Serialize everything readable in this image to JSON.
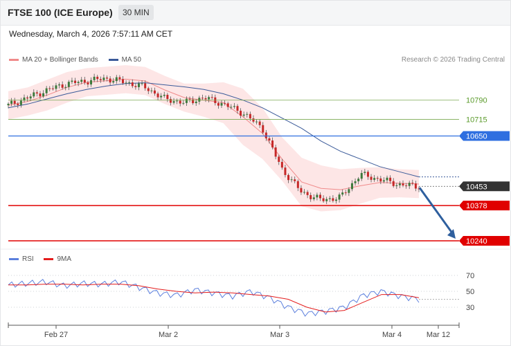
{
  "header": {
    "title": "FTSE 100 (ICE Europe)",
    "timeframe": "30 MIN"
  },
  "datetime": "Wednesday, March 4, 2026 7:57:11 AM CET",
  "legend_top": {
    "item1": "MA 20 + Bollinger Bands",
    "item2": "MA 50"
  },
  "credit": "Research © 2026 Trading Central",
  "legend_rsi": {
    "item1": "RSI",
    "item2": "9MA"
  },
  "colors": {
    "ma20": "#f08a8a",
    "ma50": "#3a5a99",
    "bands": "#fde3e3",
    "rsi": "#5b7fdd",
    "rsi_ma": "#e41c1c",
    "up": "#3c7a3c",
    "down": "#c62828",
    "support": "#e00000",
    "resistance_blue": "#2f6fe0",
    "resistance_green": "#8cc46c",
    "last": "#333333"
  },
  "chart_data": [
    {
      "type": "candlestick",
      "title": "",
      "price_levels": [
        {
          "label": "10790",
          "value": 10790,
          "kind": "resistance",
          "color": "#7aa84f"
        },
        {
          "label": "10715",
          "value": 10715,
          "kind": "resistance",
          "color": "#7aa84f"
        },
        {
          "label": "10650",
          "value": 10650,
          "kind": "pivot",
          "color": "#2f6fe0"
        },
        {
          "label": "10453",
          "value": 10453,
          "kind": "last",
          "color": "#333333"
        },
        {
          "label": "10378",
          "value": 10378,
          "kind": "support",
          "color": "#e00000"
        },
        {
          "label": "10240",
          "value": 10240,
          "kind": "support",
          "color": "#e00000"
        }
      ],
      "x_ticks": [
        "Feb 27",
        "Mar 2",
        "Mar 3",
        "Mar 4",
        "Mar 12"
      ],
      "series": [
        {
          "name": "MA 20",
          "values": [
            10770,
            10785,
            10810,
            10840,
            10860,
            10866,
            10872,
            10865,
            10830,
            10800,
            10790,
            10780,
            10725,
            10660,
            10560,
            10470,
            10445,
            10440,
            10455,
            10468,
            10465,
            10462
          ]
        },
        {
          "name": "MA 50",
          "values": [
            10760,
            10775,
            10795,
            10815,
            10832,
            10845,
            10855,
            10858,
            10850,
            10842,
            10832,
            10815,
            10790,
            10760,
            10720,
            10680,
            10630,
            10590,
            10560,
            10530,
            10510,
            10490
          ]
        },
        {
          "name": "close",
          "values": [
            10770,
            10800,
            10830,
            10855,
            10865,
            10875,
            10860,
            10840,
            10795,
            10780,
            10800,
            10775,
            10740,
            10680,
            10520,
            10430,
            10400,
            10410,
            10500,
            10480,
            10460,
            10453
          ]
        }
      ],
      "ylim": [
        10200,
        11000
      ]
    },
    {
      "type": "line",
      "title": "RSI",
      "yticks": [
        "70",
        "50",
        "30"
      ],
      "series": [
        {
          "name": "RSI",
          "values": [
            58,
            60,
            62,
            57,
            60,
            59,
            62,
            55,
            48,
            45,
            52,
            48,
            44,
            50,
            42,
            30,
            22,
            25,
            30,
            45,
            50,
            44,
            40
          ]
        },
        {
          "name": "9MA",
          "values": [
            58,
            58,
            59,
            59,
            58,
            59,
            59,
            57,
            53,
            50,
            48,
            49,
            48,
            46,
            44,
            40,
            30,
            24,
            26,
            36,
            46,
            46,
            42
          ]
        }
      ],
      "ylim": [
        0,
        100
      ]
    }
  ]
}
